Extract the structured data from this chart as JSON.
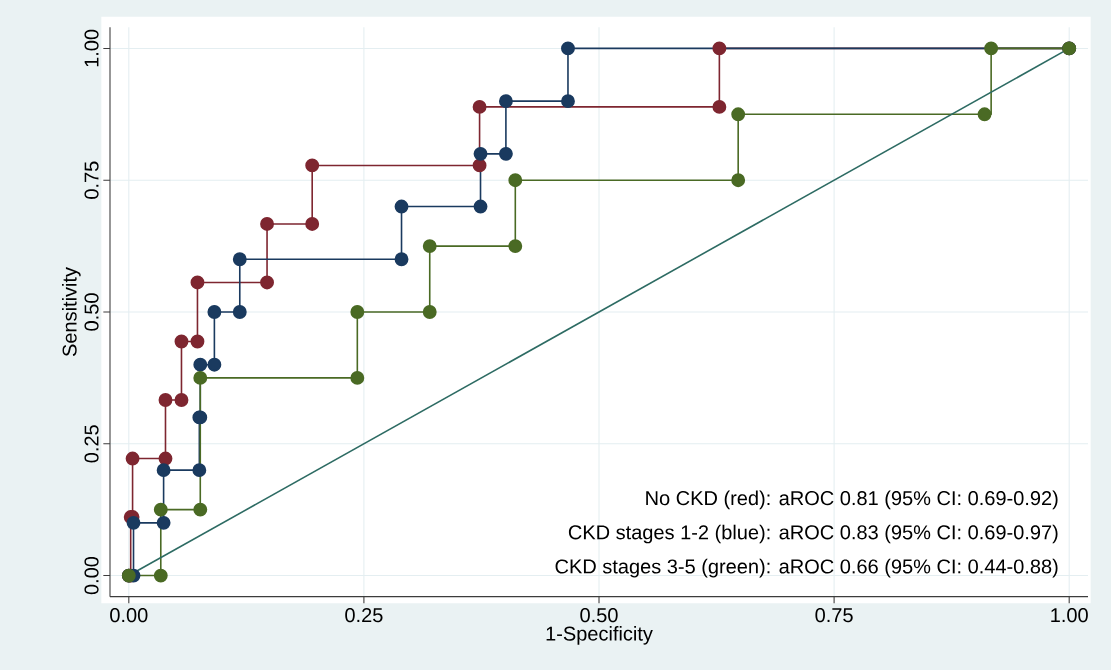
{
  "chart_data": {
    "type": "step",
    "xlabel": "1-Specificity",
    "ylabel": "Sensitivity",
    "xlim": [
      -0.02,
      1.02
    ],
    "ylim": [
      -0.04,
      1.04
    ],
    "xticks": [
      {
        "value": 0,
        "label": "0.00"
      },
      {
        "value": 0.25,
        "label": "0.25"
      },
      {
        "value": 0.5,
        "label": "0.50"
      },
      {
        "value": 0.75,
        "label": "0.75"
      },
      {
        "value": 1,
        "label": "1.00"
      }
    ],
    "yticks": [
      {
        "value": 0,
        "label": "0.00"
      },
      {
        "value": 0.25,
        "label": "0.25"
      },
      {
        "value": 0.5,
        "label": "0.50"
      },
      {
        "value": 0.75,
        "label": "0.75"
      },
      {
        "value": 1,
        "label": "1.00"
      }
    ],
    "grid": true,
    "marker": "circle",
    "series": [
      {
        "color": "#7e2630",
        "x": [
          0,
          0.002,
          0.002,
          0.004,
          0.004,
          0.039,
          0.039,
          0.056,
          0.056,
          0.073,
          0.073,
          0.147,
          0.147,
          0.195,
          0.195,
          0.373,
          0.373,
          0.628,
          0.628,
          1
        ],
        "values": [
          0,
          0,
          0.111,
          0.111,
          0.222,
          0.222,
          0.333,
          0.333,
          0.444,
          0.444,
          0.556,
          0.556,
          0.667,
          0.667,
          0.778,
          0.778,
          0.889,
          0.889,
          1,
          1
        ]
      },
      {
        "color": "#1a3a5f",
        "x": [
          0,
          0.005,
          0.005,
          0.037,
          0.037,
          0.075,
          0.075,
          0.076,
          0.076,
          0.091,
          0.091,
          0.118,
          0.118,
          0.29,
          0.29,
          0.374,
          0.374,
          0.401,
          0.401,
          0.467,
          0.467,
          1
        ],
        "values": [
          0,
          0,
          0.1,
          0.1,
          0.2,
          0.2,
          0.3,
          0.3,
          0.4,
          0.4,
          0.5,
          0.5,
          0.6,
          0.6,
          0.7,
          0.7,
          0.8,
          0.8,
          0.9,
          0.9,
          1,
          1
        ]
      },
      {
        "color": "#4a6a24",
        "x": [
          0,
          0.034,
          0.034,
          0.076,
          0.076,
          0.243,
          0.243,
          0.32,
          0.32,
          0.411,
          0.411,
          0.648,
          0.648,
          0.91,
          0.917,
          1
        ],
        "values": [
          0,
          0,
          0.125,
          0.125,
          0.375,
          0.375,
          0.5,
          0.5,
          0.625,
          0.625,
          0.75,
          0.75,
          0.875,
          0.875,
          1,
          1
        ]
      },
      {
        "type": "line",
        "marker": "none",
        "color": "#2d6b63",
        "x": [
          0,
          1
        ],
        "values": [
          0,
          1
        ]
      }
    ],
    "annotations": [
      "No CKD (red): aROC 0.81 (95% CI: 0.69-0.92)",
      "CKD stages 1-2 (blue): aROC 0.83 (95% CI: 0.69-0.97)",
      "CKD stages 3-5 (green): aROC 0.66 (95% CI: 0.44-0.88)"
    ]
  }
}
